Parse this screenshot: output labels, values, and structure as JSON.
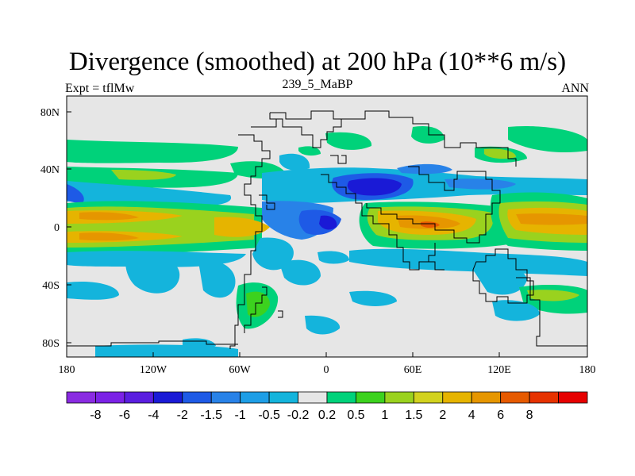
{
  "title": "Divergence (smoothed) at 200 hPa (10**6 m/s)",
  "subtitle_left": "Expt = tflMw",
  "subtitle_center": "239_5_MaBP",
  "subtitle_right": "ANN",
  "x_ticks": [
    "180",
    "120W",
    "60W",
    "0",
    "60E",
    "120E",
    "180"
  ],
  "y_ticks": [
    "80N",
    "40N",
    "0",
    "40S",
    "80S"
  ],
  "colorbar": {
    "colors": [
      "#8a2be2",
      "#7b22e6",
      "#5a1ee0",
      "#1a1ad6",
      "#1e5ae6",
      "#2882e8",
      "#1e9ee6",
      "#14b4dc",
      "#e6e6e6",
      "#00d27a",
      "#3cd21e",
      "#9ad21e",
      "#d2d21e",
      "#e6b400",
      "#e69600",
      "#e65a00",
      "#e63200",
      "#e60000"
    ],
    "labels": [
      "-8",
      "-6",
      "-4",
      "-2",
      "-1.5",
      "-1",
      "-0.5",
      "-0.2",
      "0.2",
      "0.5",
      "1",
      "1.5",
      "2",
      "4",
      "6",
      "8"
    ]
  }
}
